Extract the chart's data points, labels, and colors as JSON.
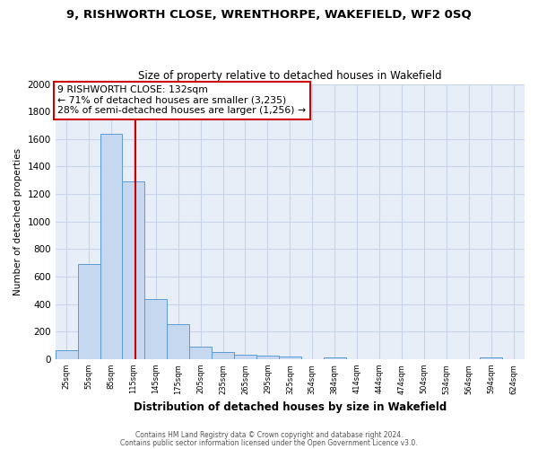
{
  "title": "9, RISHWORTH CLOSE, WRENTHORPE, WAKEFIELD, WF2 0SQ",
  "subtitle": "Size of property relative to detached houses in Wakefield",
  "xlabel": "Distribution of detached houses by size in Wakefield",
  "ylabel": "Number of detached properties",
  "bar_labels": [
    "25sqm",
    "55sqm",
    "85sqm",
    "115sqm",
    "145sqm",
    "175sqm",
    "205sqm",
    "235sqm",
    "265sqm",
    "295sqm",
    "325sqm",
    "354sqm",
    "384sqm",
    "414sqm",
    "444sqm",
    "474sqm",
    "504sqm",
    "534sqm",
    "564sqm",
    "594sqm",
    "624sqm"
  ],
  "bar_values": [
    65,
    690,
    1635,
    1290,
    435,
    255,
    90,
    55,
    30,
    25,
    20,
    0,
    15,
    0,
    0,
    0,
    0,
    0,
    0,
    15,
    0
  ],
  "bar_color": "#c5d8f0",
  "bar_edge_color": "#5b9bd5",
  "vline_color": "#cc0000",
  "annotation_title": "9 RISHWORTH CLOSE: 132sqm",
  "annotation_line1": "← 71% of detached houses are smaller (3,235)",
  "annotation_line2": "28% of semi-detached houses are larger (1,256) →",
  "annotation_box_color": "#ffffff",
  "annotation_box_edge": "#cc0000",
  "ylim": [
    0,
    2000
  ],
  "yticks": [
    0,
    200,
    400,
    600,
    800,
    1000,
    1200,
    1400,
    1600,
    1800,
    2000
  ],
  "grid_color": "#c8d4e8",
  "bg_color": "#e8eef8",
  "footer1": "Contains HM Land Registry data © Crown copyright and database right 2024.",
  "footer2": "Contains public sector information licensed under the Open Government Licence v3.0."
}
